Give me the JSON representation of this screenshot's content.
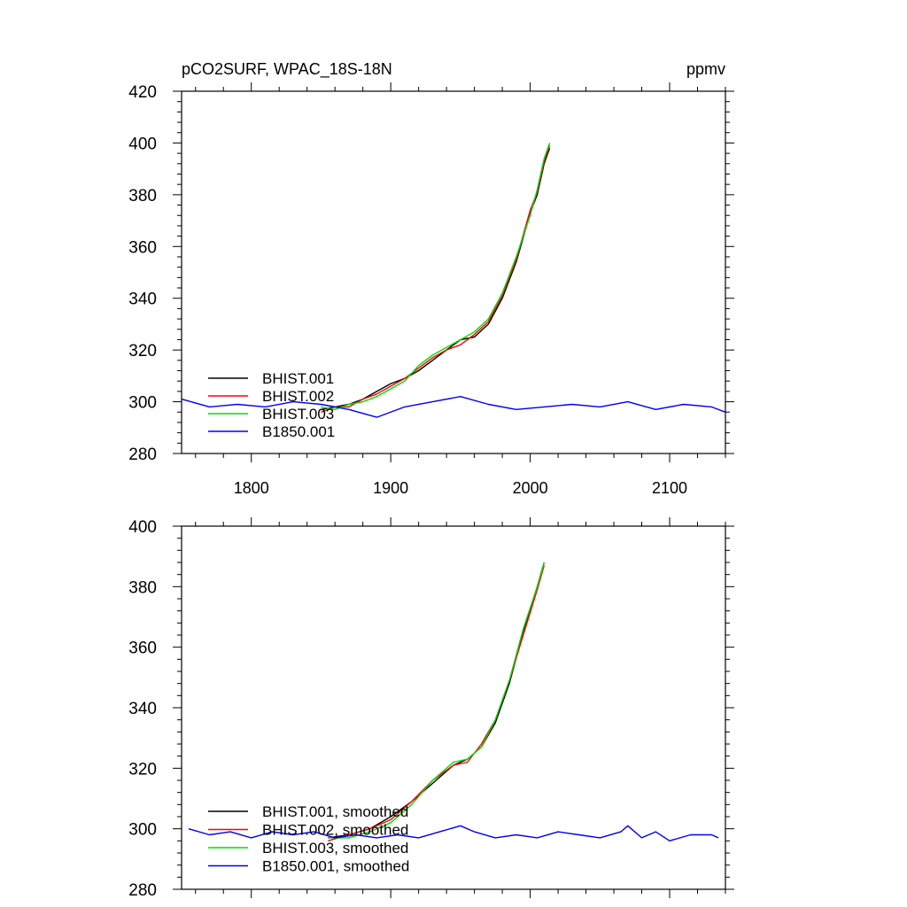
{
  "chart_data": [
    {
      "type": "line",
      "title": "pCO2SURF, WPAC_18S-18N",
      "units": "ppmv",
      "xlim": [
        1750,
        2140
      ],
      "ylim": [
        280,
        420
      ],
      "x_ticks": [
        1800,
        1900,
        2000,
        2100
      ],
      "x_tick_labels": [
        "1800",
        "1900",
        "2000",
        "2100"
      ],
      "y_ticks": [
        280,
        300,
        320,
        340,
        360,
        380,
        400,
        420
      ],
      "y_tick_labels": [
        "280",
        "300",
        "320",
        "340",
        "360",
        "380",
        "400",
        "420"
      ],
      "legend_position": "bottom-left",
      "series": [
        {
          "name": "BHIST.001",
          "color": "#000000",
          "x": [
            1850,
            1860,
            1870,
            1880,
            1890,
            1900,
            1910,
            1920,
            1930,
            1940,
            1950,
            1960,
            1970,
            1980,
            1990,
            2000,
            2005,
            2010,
            2014
          ],
          "y": [
            297,
            298,
            299,
            301,
            304,
            307,
            309,
            312,
            316,
            320,
            324,
            325,
            330,
            340,
            354,
            373,
            380,
            392,
            398
          ]
        },
        {
          "name": "BHIST.002",
          "color": "#ff0000",
          "x": [
            1850,
            1860,
            1870,
            1880,
            1890,
            1900,
            1910,
            1920,
            1930,
            1940,
            1950,
            1960,
            1970,
            1980,
            1990,
            2000,
            2005,
            2010,
            2014
          ],
          "y": [
            296,
            298,
            298,
            301,
            303,
            306,
            309,
            313,
            317,
            320,
            322,
            326,
            331,
            341,
            355,
            374,
            381,
            393,
            399
          ]
        },
        {
          "name": "BHIST.003",
          "color": "#00dd00",
          "x": [
            1850,
            1860,
            1870,
            1880,
            1890,
            1900,
            1910,
            1920,
            1930,
            1940,
            1950,
            1960,
            1970,
            1980,
            1990,
            2000,
            2005,
            2010,
            2014
          ],
          "y": [
            298,
            297,
            299,
            300,
            302,
            305,
            308,
            314,
            318,
            321,
            324,
            327,
            332,
            342,
            356,
            372,
            382,
            394,
            400
          ]
        },
        {
          "name": "B1850.001",
          "color": "#0000ee",
          "x": [
            1750,
            1770,
            1790,
            1810,
            1830,
            1850,
            1870,
            1890,
            1910,
            1930,
            1950,
            1970,
            1990,
            2010,
            2030,
            2050,
            2070,
            2090,
            2110,
            2130,
            2140
          ],
          "y": [
            301,
            298,
            299,
            298,
            300,
            299,
            297,
            294,
            298,
            300,
            302,
            299,
            297,
            298,
            299,
            298,
            300,
            297,
            299,
            298,
            296
          ]
        }
      ]
    },
    {
      "type": "line",
      "xlim": [
        1750,
        2140
      ],
      "ylim": [
        280,
        400
      ],
      "x_ticks": [
        1800,
        1900,
        2000,
        2100
      ],
      "y_ticks": [
        280,
        300,
        320,
        340,
        360,
        380,
        400
      ],
      "y_tick_labels": [
        "280",
        "300",
        "320",
        "340",
        "360",
        "380",
        "400"
      ],
      "legend_position": "bottom-left",
      "series": [
        {
          "name": "BHIST.001, smoothed",
          "color": "#000000",
          "x": [
            1855,
            1870,
            1885,
            1900,
            1915,
            1930,
            1945,
            1955,
            1965,
            1975,
            1985,
            1995,
            2005,
            2010
          ],
          "y": [
            297,
            298,
            300,
            304,
            309,
            315,
            321,
            323,
            327,
            335,
            348,
            365,
            380,
            388
          ]
        },
        {
          "name": "BHIST.002, smoothed",
          "color": "#ff0000",
          "x": [
            1855,
            1870,
            1885,
            1900,
            1915,
            1930,
            1945,
            1955,
            1965,
            1975,
            1985,
            1995,
            2005,
            2010
          ],
          "y": [
            296,
            298,
            300,
            303,
            309,
            316,
            321,
            322,
            328,
            336,
            349,
            364,
            379,
            387
          ]
        },
        {
          "name": "BHIST.003, smoothed",
          "color": "#00dd00",
          "x": [
            1855,
            1870,
            1885,
            1900,
            1915,
            1930,
            1945,
            1955,
            1965,
            1975,
            1985,
            1995,
            2005,
            2010
          ],
          "y": [
            297,
            297,
            299,
            302,
            308,
            316,
            322,
            323,
            327,
            336,
            349,
            366,
            380,
            388
          ]
        },
        {
          "name": "B1850.001, smoothed",
          "color": "#0000ee",
          "x": [
            1755,
            1770,
            1785,
            1800,
            1815,
            1830,
            1845,
            1860,
            1875,
            1890,
            1905,
            1920,
            1935,
            1950,
            1960,
            1975,
            1990,
            2005,
            2020,
            2035,
            2050,
            2065,
            2070,
            2080,
            2090,
            2100,
            2115,
            2130,
            2135
          ],
          "y": [
            300,
            298,
            299,
            297,
            299,
            298,
            299,
            297,
            298,
            297,
            298,
            297,
            299,
            301,
            299,
            297,
            298,
            297,
            299,
            298,
            297,
            299,
            301,
            297,
            299,
            296,
            298,
            298,
            297
          ]
        }
      ]
    }
  ]
}
